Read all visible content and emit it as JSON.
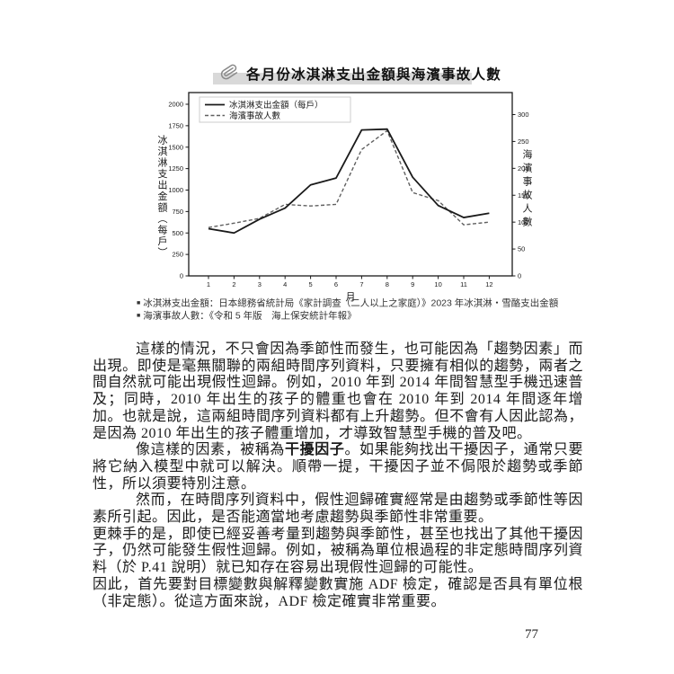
{
  "colors": {
    "text": "#1a1a1a",
    "title_band": "#d9d9d9",
    "solid_line": "#1a1a1a",
    "dashed_line": "#606060",
    "legend_border": "#cccccc",
    "frame": "#1a1a1a"
  },
  "figure": {
    "icon": "paperclip-icon",
    "title": "各月份冰淇淋支出金額與海濱事故人數",
    "bullet": "■",
    "note1": "冰淇淋支出金額：日本總務省統計局《家計調查（二人以上之家庭）》2023 年冰淇淋・雪酪支出金額",
    "note2": "海濱事故人數：《令和 5 年版　海上保安統計年報》"
  },
  "chart_data": {
    "type": "line",
    "title": "各月份冰淇淋支出金額與海濱事故人數",
    "x": [
      1,
      2,
      3,
      4,
      5,
      6,
      7,
      8,
      9,
      10,
      11,
      12
    ],
    "xlabel": "月",
    "x_tick_labels": [
      "1",
      "2",
      "3",
      "4",
      "5",
      "6",
      "7",
      "8",
      "9",
      "10",
      "11",
      "12"
    ],
    "series": [
      {
        "name": "冰淇淋支出金額（每戶）",
        "style": "solid",
        "axis": "left",
        "values": [
          550,
          500,
          660,
          790,
          1060,
          1140,
          1700,
          1710,
          1150,
          820,
          680,
          730
        ]
      },
      {
        "name": "海濱事故人數",
        "style": "dashed",
        "axis": "right",
        "values": [
          90,
          98,
          107,
          133,
          130,
          133,
          235,
          270,
          155,
          140,
          95,
          100
        ]
      }
    ],
    "left_axis": {
      "label": "冰淇淋支出金額（每戶）",
      "ticks": [
        0,
        250,
        500,
        750,
        1000,
        1250,
        1500,
        1750,
        2000
      ],
      "lim": [
        0,
        2136
      ]
    },
    "right_axis": {
      "label": "海濱事故人數",
      "ticks": [
        0,
        50,
        100,
        150,
        200,
        250,
        300
      ],
      "lim": [
        0,
        341
      ]
    },
    "legend_position": "upper left",
    "grid": false
  },
  "body": {
    "p1": "這樣的情況，不只會因為季節性而發生，也可能因為「趨勢因素」而出現。即使是毫無關聯的兩組時間序列資料，只要擁有相似的趨勢，兩者之間自然就可能出現假性迴歸。例如，2010 年到 2014 年間智慧型手機迅速普及；同時，2010 年出生的孩子的體重也會在 2010 年到 2014 年間逐年增加。也就是說，這兩組時間序列資料都有上升趨勢。但不會有人因此認為，是因為 2010 年出生的孩子體重增加，才導致智慧型手機的普及吧。",
    "p2_before": "像這樣的因素，被稱為",
    "p2_bold": "干擾因子",
    "p2_after": "。如果能夠找出干擾因子，通常只要將它納入模型中就可以解決。順帶一提，干擾因子並不侷限於趨勢或季節性，所以須要特別注意。",
    "p3": "然而，在時間序列資料中，假性迴歸確實經常是由趨勢或季節性等因素所引起。因此，是否能適當地考慮趨勢與季節性非常重要。",
    "p4": "更棘手的是，即使已經妥善考量到趨勢與季節性，甚至也找出了其他干擾因子，仍然可能發生假性迴歸。例如，被稱為單位根過程的非定態時間序列資料（於 P.41 說明）就已知存在容易出現假性迴歸的可能性。",
    "p5": "因此，首先要對目標變數與解釋變數實施 ADF 檢定，確認是否具有單位根（非定態）。從這方面來說，ADF 檢定確實非常重要。"
  },
  "page": {
    "number": "77"
  }
}
